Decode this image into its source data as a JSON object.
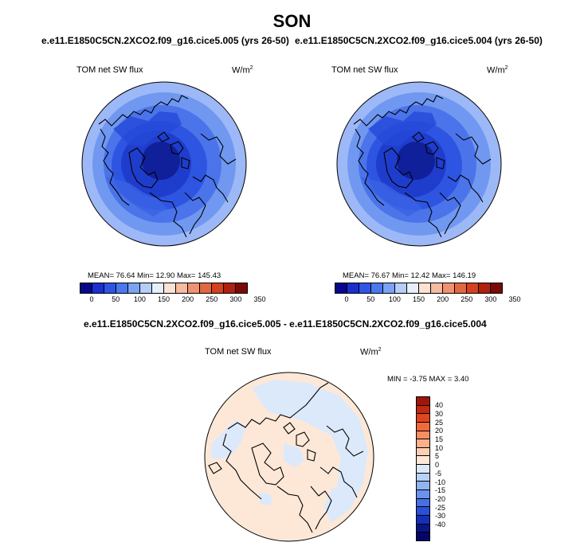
{
  "title": "SON",
  "panels": [
    {
      "case": "e.e11.E1850C5CN.2XCO2.f09_g16.cice5.005 (yrs 26-50)",
      "variable": "TOM net SW flux",
      "units": "W/m",
      "units_sup": "2",
      "stats": "MEAN=  76.64  Min=  12.90  Max= 145.43"
    },
    {
      "case": "e.e11.E1850C5CN.2XCO2.f09_g16.cice5.004 (yrs 26-50)",
      "variable": "TOM net SW flux",
      "units": "W/m",
      "units_sup": "2",
      "stats": "MEAN=  76.67  Min=  12.42  Max= 146.19"
    }
  ],
  "colorbar_top": {
    "colors": [
      "#08088a",
      "#1c2fd0",
      "#2e55e6",
      "#4a78ee",
      "#7aa2f5",
      "#b4cdfa",
      "#e6effc",
      "#fde2d4",
      "#f7bba0",
      "#f09272",
      "#e4683f",
      "#d44020",
      "#b02010",
      "#7a0a06"
    ],
    "ticks": [
      "0",
      "50",
      "100",
      "150",
      "200",
      "250",
      "300",
      "350"
    ]
  },
  "diff": {
    "case": "e.e11.E1850C5CN.2XCO2.f09_g16.cice5.005 - e.e11.E1850C5CN.2XCO2.f09_g16.cice5.004",
    "variable": "TOM net SW flux",
    "units": "W/m",
    "units_sup": "2",
    "stats": "MIN =  -3.75 MAX =   3.40",
    "colors_top_down": [
      "#a0160a",
      "#c12a10",
      "#de4621",
      "#f06a3c",
      "#f68e62",
      "#f9b08b",
      "#fccfb4",
      "#fde8d8",
      "#dce9fb",
      "#b8d1f7",
      "#90b3f2",
      "#6b93ec",
      "#4670e4",
      "#2a4fd8",
      "#1530b8",
      "#081785",
      "#06046a"
    ],
    "ticks": [
      "40",
      "30",
      "25",
      "20",
      "15",
      "10",
      "5",
      "0",
      "-5",
      "-10",
      "-15",
      "-20",
      "-25",
      "-30",
      "-40"
    ]
  }
}
